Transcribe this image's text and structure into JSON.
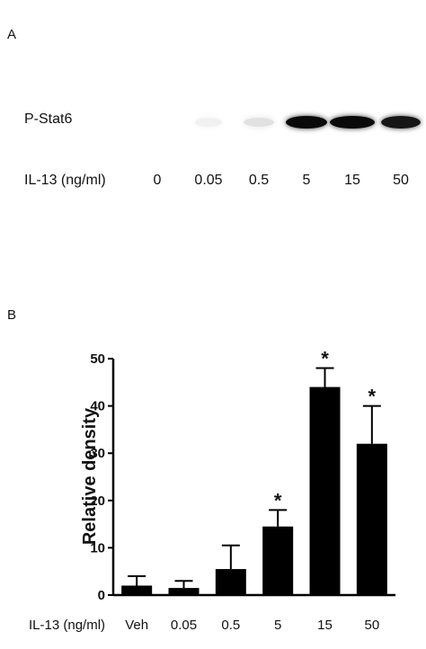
{
  "panel_a": {
    "letter": "A",
    "blot_label": "P-Stat6",
    "lane_row_label": "IL-13 (ng/ml)",
    "lanes": [
      "0",
      "0.05",
      "0.5",
      "5",
      "15",
      "50"
    ],
    "band_intensity": [
      0.0,
      0.06,
      0.12,
      1.0,
      1.0,
      0.95
    ]
  },
  "panel_b": {
    "letter": "B",
    "xlabel": "IL-13 (ng/ml)"
  },
  "chart_data": {
    "type": "bar",
    "categories": [
      "Veh",
      "0.05",
      "0.5",
      "5",
      "15",
      "50"
    ],
    "values": [
      2,
      1.5,
      5.5,
      14.5,
      44,
      32
    ],
    "error_upper": [
      2,
      1.5,
      5,
      3.5,
      4,
      8
    ],
    "significance": [
      "",
      "",
      "",
      "*",
      "*",
      "*"
    ],
    "xlabel": "IL-13 (ng/ml)",
    "ylabel": "Relative density",
    "ylim": [
      0,
      50
    ],
    "yticks": [
      0,
      10,
      20,
      30,
      40,
      50
    ],
    "bar_color": "#000000"
  }
}
